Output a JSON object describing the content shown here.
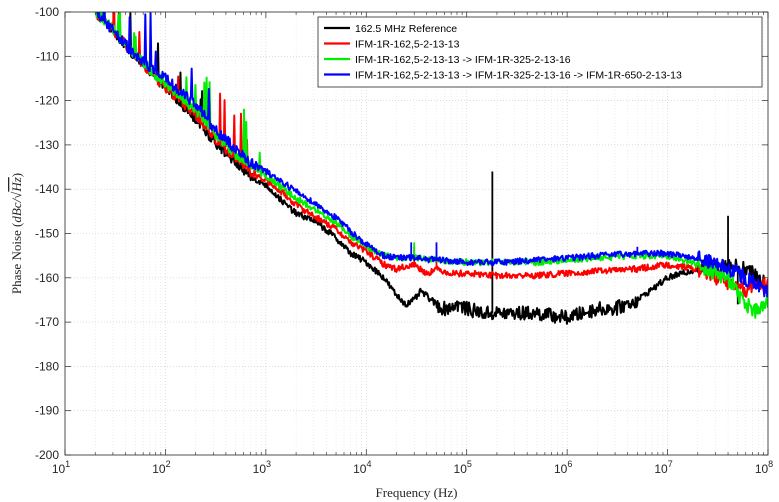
{
  "chart_data": {
    "type": "line",
    "xscale": "log",
    "xlim": [
      10,
      100000000
    ],
    "ylim": [
      -200,
      -100
    ],
    "grid": true,
    "legend_position": "top-right",
    "xlabel": "Frequency (Hz)",
    "ylabel": {
      "prefix": "Phase Noise (",
      "unit": "dBc/",
      "sqrt": "√",
      "hz": "Hz",
      "suffix": ")"
    },
    "xticks": [
      {
        "value": 10,
        "base": "10",
        "exp": "1"
      },
      {
        "value": 100,
        "base": "10",
        "exp": "2"
      },
      {
        "value": 1000,
        "base": "10",
        "exp": "3"
      },
      {
        "value": 10000,
        "base": "10",
        "exp": "4"
      },
      {
        "value": 100000,
        "base": "10",
        "exp": "5"
      },
      {
        "value": 1000000,
        "base": "10",
        "exp": "6"
      },
      {
        "value": 10000000,
        "base": "10",
        "exp": "7"
      },
      {
        "value": 100000000,
        "base": "10",
        "exp": "8"
      }
    ],
    "yticks": [
      {
        "value": -100,
        "label": "-100"
      },
      {
        "value": -110,
        "label": "-110"
      },
      {
        "value": -120,
        "label": "-120"
      },
      {
        "value": -130,
        "label": "-130"
      },
      {
        "value": -140,
        "label": "-140"
      },
      {
        "value": -150,
        "label": "-150"
      },
      {
        "value": -160,
        "label": "-160"
      },
      {
        "value": -170,
        "label": "-170"
      },
      {
        "value": -180,
        "label": "-180"
      },
      {
        "value": -190,
        "label": "-190"
      },
      {
        "value": -200,
        "label": "-200"
      }
    ],
    "series": [
      {
        "name": "162.5 MHz Reference",
        "color": "#000000",
        "x": [
          20,
          30,
          50,
          100,
          200,
          300,
          500,
          700,
          1000,
          1500,
          2000,
          3000,
          5000,
          7000,
          10000,
          15000,
          20000,
          25000,
          30000,
          35000,
          50000,
          60000,
          80000,
          100000,
          150000,
          200000,
          300000,
          500000,
          1000000,
          2000000,
          3000000,
          5000000,
          10000000,
          20000000,
          40000000,
          60000000,
          80000000,
          100000000
        ],
        "y": [
          -100,
          -104,
          -110,
          -117,
          -124,
          -129,
          -134,
          -137,
          -139,
          -143,
          -145.5,
          -147,
          -151,
          -154.5,
          -156.5,
          -160,
          -164,
          -166,
          -165,
          -163,
          -166,
          -167,
          -166,
          -167,
          -168,
          -168,
          -168,
          -168,
          -169,
          -167,
          -167,
          -165,
          -160,
          -158,
          -157,
          -158,
          -160,
          -162
        ],
        "spikes": [
          {
            "x": 180000,
            "y": -136
          },
          {
            "x": 40000000,
            "y": -146
          },
          {
            "x": 50000000,
            "y": -166
          }
        ]
      },
      {
        "name": "IFM-1R-162,5-2-13-13",
        "color": "#ff0000",
        "x": [
          20,
          30,
          50,
          100,
          200,
          300,
          500,
          700,
          1000,
          1500,
          2000,
          3000,
          5000,
          7000,
          10000,
          15000,
          20000,
          30000,
          40000,
          50000,
          70000,
          100000,
          200000,
          500000,
          1000000,
          2000000,
          5000000,
          10000000,
          20000000,
          40000000,
          60000000,
          80000000,
          100000000
        ],
        "y": [
          -100,
          -104,
          -110,
          -117,
          -123,
          -128,
          -133,
          -136,
          -138,
          -141,
          -143.5,
          -146,
          -149,
          -152,
          -154,
          -157,
          -158,
          -157,
          -159,
          -158,
          -159,
          -159,
          -159.5,
          -159.5,
          -159,
          -158.5,
          -158,
          -157,
          -158,
          -161,
          -163,
          -161,
          -162
        ],
        "spikes": [
          {
            "x": 30000,
            "y": -153
          },
          {
            "x": 50000,
            "y": -155
          }
        ]
      },
      {
        "name": "IFM-1R-162,5-2-13-13 -> IFM-1R-325-2-13-16",
        "color": "#00ee00",
        "x": [
          20,
          30,
          50,
          100,
          200,
          300,
          500,
          700,
          1000,
          1500,
          2000,
          3000,
          5000,
          7000,
          10000,
          15000,
          20000,
          30000,
          50000,
          100000,
          200000,
          500000,
          1000000,
          2000000,
          5000000,
          10000000,
          20000000,
          40000000,
          60000000,
          80000000,
          100000000
        ],
        "y": [
          -100,
          -104,
          -110,
          -116,
          -122,
          -127,
          -132,
          -135,
          -137,
          -140,
          -142,
          -144.5,
          -147.5,
          -150.5,
          -153,
          -155,
          -155.5,
          -155.5,
          -156,
          -156.5,
          -156.5,
          -156.5,
          -156,
          -155.5,
          -155,
          -155,
          -157,
          -160,
          -166,
          -168,
          -165
        ],
        "spikes": [
          {
            "x": 30000,
            "y": -152
          },
          {
            "x": 50000,
            "y": -154
          }
        ]
      },
      {
        "name": "IFM-1R-162,5-2-13-13 -> IFM-1R-325-2-13-16 -> IFM-1R-650-2-13-13",
        "color": "#0000ff",
        "x": [
          20,
          30,
          50,
          100,
          200,
          300,
          500,
          700,
          1000,
          1500,
          2000,
          3000,
          5000,
          7000,
          10000,
          15000,
          20000,
          30000,
          50000,
          100000,
          200000,
          500000,
          1000000,
          2000000,
          5000000,
          10000000,
          20000000,
          40000000,
          60000000,
          80000000,
          100000000
        ],
        "y": [
          -100,
          -104,
          -110,
          -115,
          -121,
          -126,
          -131,
          -134,
          -136,
          -138.5,
          -140.5,
          -143,
          -146.5,
          -149.5,
          -152.5,
          -155,
          -155.5,
          -155.5,
          -156,
          -156.5,
          -156.5,
          -156,
          -155.5,
          -155,
          -154.5,
          -154.5,
          -155.5,
          -158,
          -160,
          -162,
          -163
        ],
        "spikes": [
          {
            "x": 28000,
            "y": -152
          },
          {
            "x": 50000,
            "y": -152
          },
          {
            "x": 5000000,
            "y": -153
          }
        ]
      }
    ]
  }
}
